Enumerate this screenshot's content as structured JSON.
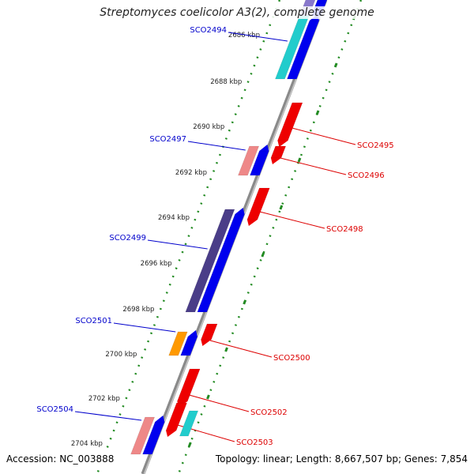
{
  "title": "Streptomyces coelicolor A3(2), complete genome",
  "accession": "Accession: NC_003888",
  "summary": "Topology: linear; Length: 8,667,507 bp; Genes: 7,854",
  "colors": {
    "background": "#ffffff",
    "backbone": "#8a8a8a",
    "tick_dots": "#228B22",
    "forward_label": "#0000cc",
    "reverse_label": "#dd0000",
    "forward_strand": "#0000ee",
    "reverse_strand": "#ee0000",
    "cyan": "#22cccc",
    "dark_purple": "#4a3d88",
    "light_purple": "#8877cc",
    "pink": "#ee8888",
    "orange": "#ff9900"
  },
  "ruler_labels": [
    "2686 kbp",
    "2688 kbp",
    "2690 kbp",
    "2692 kbp",
    "2694 kbp",
    "2696 kbp",
    "2698 kbp",
    "2700 kbp",
    "2702 kbp",
    "2704 kbp"
  ],
  "forward_genes": [
    {
      "id": "top-outer",
      "label": "",
      "outer_color": "light_purple",
      "inner_color": "forward_strand"
    },
    {
      "id": "SCO2494",
      "label": "SCO2494",
      "outer_color": "cyan",
      "inner_color": "forward_strand"
    },
    {
      "id": "SCO2497",
      "label": "SCO2497",
      "outer_color": "pink",
      "inner_color": "forward_strand"
    },
    {
      "id": "SCO2499",
      "label": "SCO2499",
      "outer_color": "dark_purple",
      "inner_color": "forward_strand"
    },
    {
      "id": "SCO2501",
      "label": "SCO2501",
      "outer_color": "orange",
      "inner_color": "forward_strand"
    },
    {
      "id": "SCO2504",
      "label": "SCO2504",
      "outer_color": "pink",
      "inner_color": "forward_strand"
    }
  ],
  "reverse_genes": [
    {
      "id": "SCO2495",
      "label": "SCO2495"
    },
    {
      "id": "SCO2496",
      "label": "SCO2496"
    },
    {
      "id": "SCO2498",
      "label": "SCO2498"
    },
    {
      "id": "SCO2500",
      "label": "SCO2500"
    },
    {
      "id": "SCO2502",
      "label": "SCO2502"
    },
    {
      "id": "SCO2503",
      "label": "SCO2503"
    }
  ]
}
